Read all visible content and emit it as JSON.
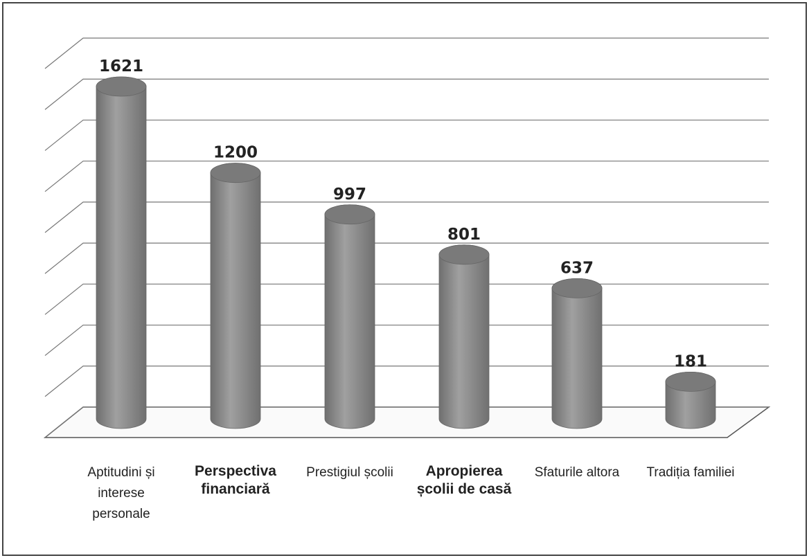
{
  "chart_data": {
    "type": "bar",
    "categories": [
      "Aptitudini și interese personale",
      "Perspectiva financiară",
      "Prestigiul școlii",
      "Apropierea școlii de casă",
      "Sfaturile altora",
      "Tradiția familiei"
    ],
    "values": [
      1621,
      1200,
      997,
      801,
      637,
      181
    ],
    "color": "#8c8c8c",
    "ylim": [
      0,
      1800
    ],
    "yticks": [
      0,
      200,
      400,
      600,
      800,
      1000,
      1200,
      1400,
      1600,
      1800
    ],
    "grid": true
  }
}
